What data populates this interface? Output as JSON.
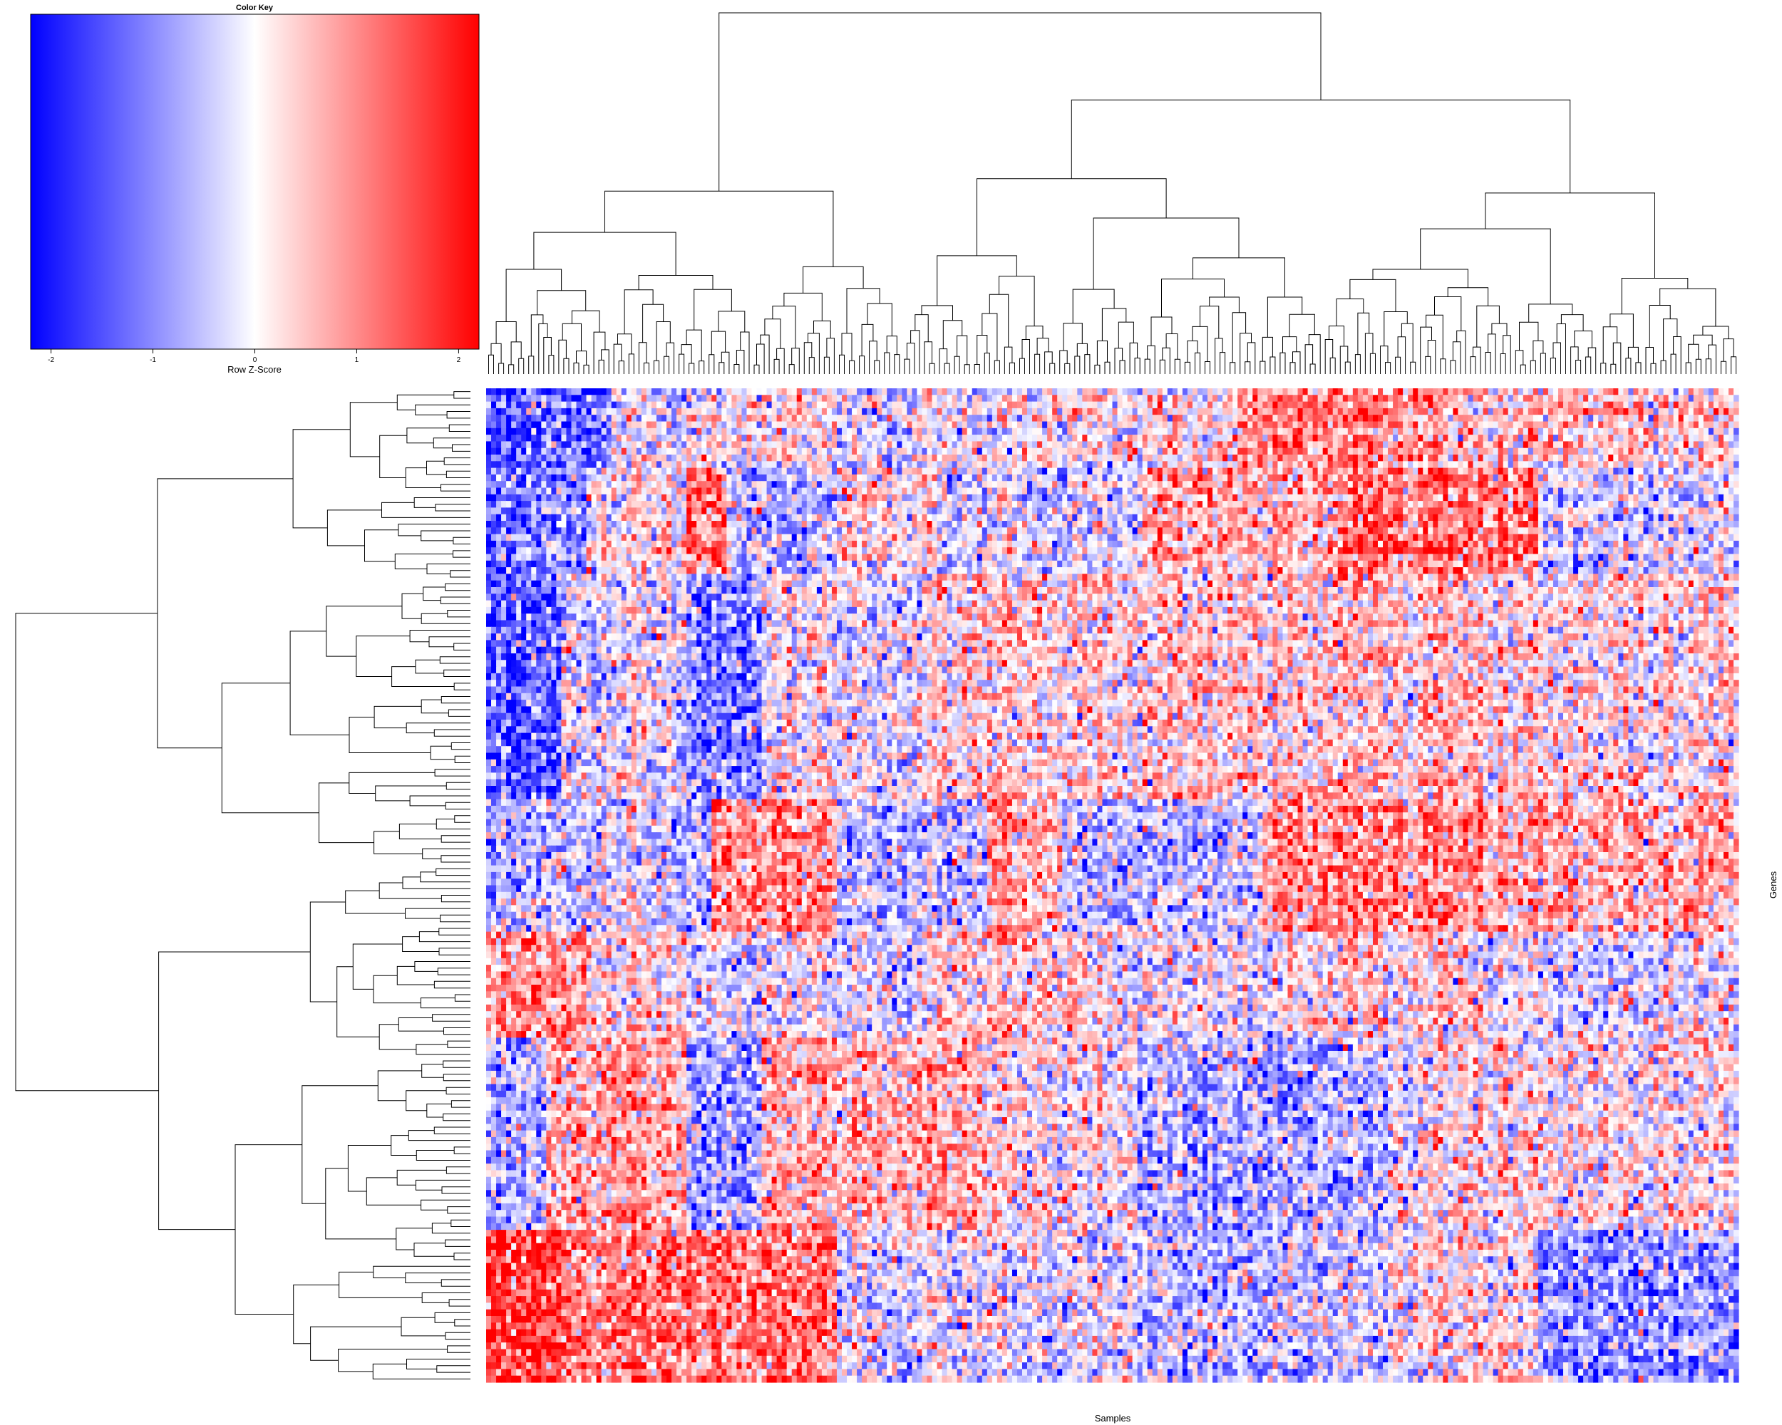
{
  "chart_data": {
    "type": "heatmap",
    "title": "",
    "xlabel": "Samples",
    "ylabel": "Genes",
    "n_rows": 150,
    "n_cols": 250,
    "value_range": [
      -2.2,
      2.2
    ],
    "row_dendrogram": true,
    "col_dendrogram": true,
    "color_key": {
      "title": "Color Key",
      "xlabel": "Row Z-Score",
      "ticks": [
        -2,
        -1,
        0,
        1,
        2
      ],
      "tick_labels": [
        "-2",
        "-1",
        "0",
        "1",
        "2"
      ],
      "range": [
        -2.2,
        2.2
      ],
      "low_color": "#0000ff",
      "mid_color": "#ffffff",
      "high_color": "#ff0000"
    },
    "row_blocks": [
      {
        "rows": [
          0,
          12
        ],
        "col_pattern": [
          [
            0,
            25,
            -1.4
          ],
          [
            25,
            40,
            -0.3
          ],
          [
            40,
            70,
            0.1
          ],
          [
            70,
            110,
            -0.2
          ],
          [
            110,
            150,
            0.2
          ],
          [
            150,
            190,
            1.0
          ],
          [
            190,
            250,
            0.4
          ]
        ]
      },
      {
        "rows": [
          12,
          28
        ],
        "col_pattern": [
          [
            0,
            10,
            -1.2
          ],
          [
            10,
            20,
            -1.0
          ],
          [
            20,
            40,
            0.0
          ],
          [
            40,
            48,
            1.2
          ],
          [
            48,
            70,
            -0.6
          ],
          [
            70,
            90,
            0.3
          ],
          [
            90,
            130,
            -0.3
          ],
          [
            130,
            170,
            0.6
          ],
          [
            170,
            210,
            1.1
          ],
          [
            210,
            250,
            -0.3
          ]
        ]
      },
      {
        "rows": [
          28,
          62
        ],
        "col_pattern": [
          [
            0,
            15,
            -1.4
          ],
          [
            15,
            40,
            -0.2
          ],
          [
            40,
            55,
            -1.0
          ],
          [
            55,
            90,
            -0.1
          ],
          [
            90,
            140,
            0.3
          ],
          [
            140,
            200,
            0.4
          ],
          [
            200,
            250,
            0.2
          ]
        ]
      },
      {
        "rows": [
          62,
          82
        ],
        "col_pattern": [
          [
            0,
            10,
            -0.5
          ],
          [
            10,
            30,
            -0.4
          ],
          [
            30,
            45,
            -0.6
          ],
          [
            45,
            70,
            0.9
          ],
          [
            70,
            100,
            -0.5
          ],
          [
            100,
            115,
            0.6
          ],
          [
            115,
            155,
            -0.5
          ],
          [
            155,
            200,
            0.9
          ],
          [
            200,
            250,
            0.6
          ]
        ]
      },
      {
        "rows": [
          82,
          98
        ],
        "col_pattern": [
          [
            0,
            20,
            0.9
          ],
          [
            20,
            40,
            0.2
          ],
          [
            40,
            90,
            -0.2
          ],
          [
            90,
            120,
            0.4
          ],
          [
            120,
            160,
            -0.1
          ],
          [
            160,
            200,
            0.2
          ],
          [
            200,
            250,
            -0.2
          ]
        ]
      },
      {
        "rows": [
          98,
          127
        ],
        "col_pattern": [
          [
            0,
            12,
            -0.6
          ],
          [
            12,
            40,
            0.6
          ],
          [
            40,
            55,
            -0.8
          ],
          [
            55,
            100,
            0.6
          ],
          [
            100,
            130,
            0.1
          ],
          [
            130,
            180,
            -0.7
          ],
          [
            180,
            250,
            0.1
          ]
        ]
      },
      {
        "rows": [
          127,
          150
        ],
        "col_pattern": [
          [
            0,
            15,
            1.8
          ],
          [
            15,
            70,
            1.1
          ],
          [
            70,
            130,
            -0.2
          ],
          [
            130,
            180,
            -0.5
          ],
          [
            180,
            210,
            0.1
          ],
          [
            210,
            250,
            -0.9
          ]
        ]
      }
    ]
  }
}
